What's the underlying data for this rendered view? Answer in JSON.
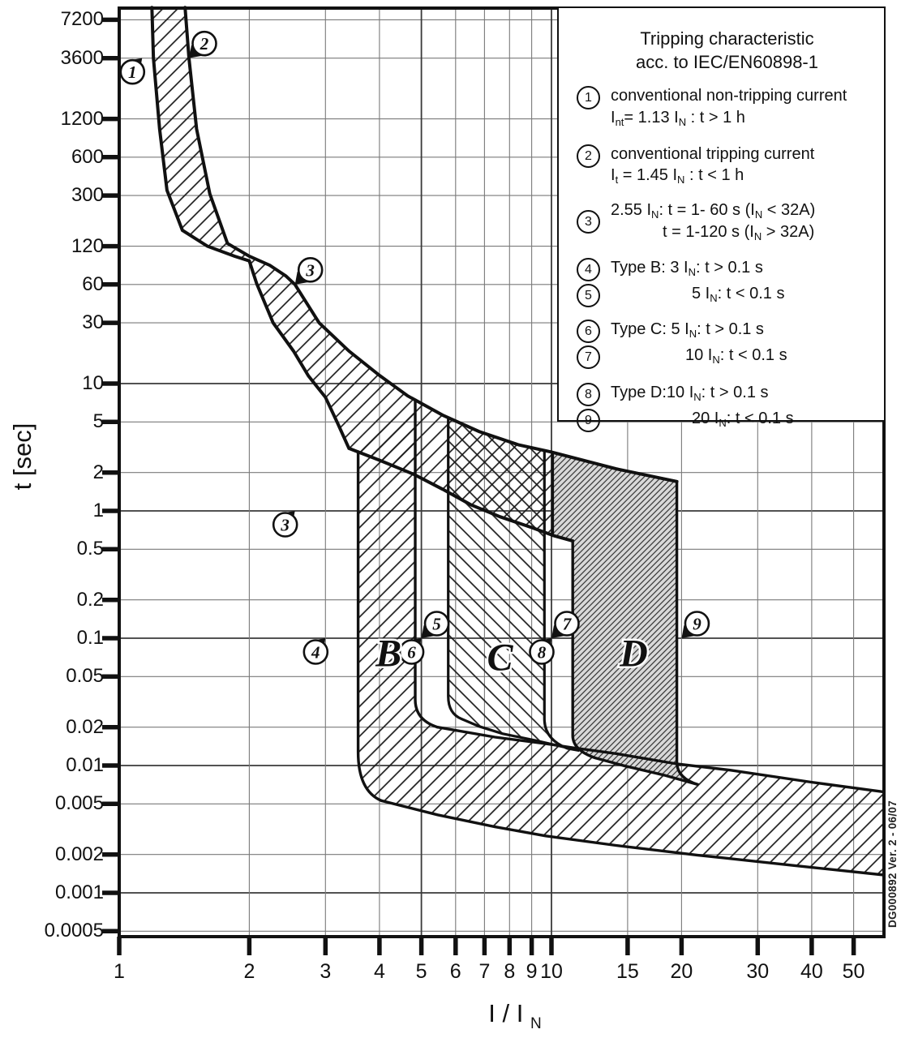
{
  "doc_code": "DG000892 Ver. 2 - 06/07",
  "legend": {
    "title_line1": "Tripping characteristic",
    "title_line2": "acc. to IEC/EN60898-1",
    "items": [
      {
        "num": "1",
        "mt": 14,
        "lines": [
          {
            "t": "conventional non-tripping current"
          },
          {
            "t": "I_{nt}= 1.13 I_{N} : t > 1 h"
          }
        ]
      },
      {
        "num": "2",
        "mt": 18,
        "lines": [
          {
            "t": "conventional tripping current"
          },
          {
            "t": "I_{t} = 1.45 I_{N} : t < 1 h"
          }
        ]
      },
      {
        "num": "3",
        "mt": 16,
        "center": true,
        "lines": [
          {
            "t": "2.55 I_{N}: t = 1- 60 s (I_{N} < 32A)"
          },
          {
            "t": "t = 1-120 s (I_{N} > 32A)",
            "pad": 64
          }
        ]
      },
      {
        "num": "4",
        "mt": 16,
        "lines": [
          {
            "t": "Type B: 3 I_{N}: t > 0.1 s"
          }
        ]
      },
      {
        "num": "5",
        "mt": 2,
        "lines": [
          {
            "t": "5 I_{N}: t < 0.1 s",
            "pad": 100
          }
        ]
      },
      {
        "num": "6",
        "mt": 14,
        "lines": [
          {
            "t": "Type C: 5 I_{N}: t > 0.1 s"
          }
        ]
      },
      {
        "num": "7",
        "mt": 2,
        "lines": [
          {
            "t": "10 I_{N}: t < 0.1 s",
            "pad": 92
          }
        ]
      },
      {
        "num": "8",
        "mt": 16,
        "lines": [
          {
            "t": "Type D:10 I_{N}: t > 0.1 s"
          }
        ]
      },
      {
        "num": "9",
        "mt": 2,
        "lines": [
          {
            "t": "20 I_{N}: t < 0.1 s",
            "pad": 100
          }
        ]
      }
    ]
  },
  "axes": {
    "y_title": "t [sec]",
    "x_title": "I / I",
    "x_title_sub": "N",
    "y_ticks": [
      "7200",
      "3600",
      "1200",
      "600",
      "300",
      "120",
      "60",
      "30",
      "10",
      "5",
      "2",
      "1",
      "0.5",
      "0.2",
      "0.1",
      "0.05",
      "0.02",
      "0.01",
      "0.005",
      "0.002",
      "0.001",
      "0.0005"
    ],
    "x_ticks": [
      1,
      2,
      3,
      4,
      5,
      6,
      7,
      8,
      9,
      10,
      15,
      20,
      30,
      40,
      50
    ]
  },
  "chart_data": {
    "type": "area",
    "title": "Tripping characteristic acc. to IEC/EN60898-1",
    "xlabel": "I / I_N",
    "ylabel": "t [sec]",
    "x_scale": "log",
    "y_scale": "log",
    "xlim": [
      1,
      58.8
    ],
    "ylim": [
      0.00042,
      9200
    ],
    "grid": "on",
    "curves": {
      "thermal_upper_1_45": [
        [
          1.42,
          9000
        ],
        [
          1.45,
          3600
        ],
        [
          1.51,
          1000
        ],
        [
          1.62,
          310
        ],
        [
          1.78,
          126
        ],
        [
          2.0,
          100
        ],
        [
          2.23,
          85
        ],
        [
          2.43,
          70
        ],
        [
          2.55,
          60
        ],
        [
          2.9,
          30
        ],
        [
          3.4,
          18
        ],
        [
          4.0,
          11.6
        ],
        [
          4.65,
          8.0
        ],
        [
          5.6,
          5.65
        ],
        [
          6.8,
          4.2
        ],
        [
          8.4,
          3.3
        ],
        [
          10,
          2.9
        ],
        [
          14.1,
          2.14
        ],
        [
          19.5,
          1.7
        ]
      ],
      "thermal_lower_1_13": [
        [
          1.19,
          9000
        ],
        [
          1.2,
          3600
        ],
        [
          1.24,
          1000
        ],
        [
          1.29,
          330
        ],
        [
          1.4,
          160
        ],
        [
          1.6,
          120
        ],
        [
          1.85,
          100
        ],
        [
          2.0,
          92
        ],
        [
          2.08,
          61
        ],
        [
          2.27,
          30
        ],
        [
          2.53,
          18
        ],
        [
          2.74,
          11.5
        ],
        [
          3.0,
          7.8
        ],
        [
          3.2,
          4.9
        ],
        [
          3.4,
          3.1
        ],
        [
          4.0,
          2.5
        ],
        [
          4.8,
          1.94
        ],
        [
          5.6,
          1.48
        ],
        [
          6.5,
          1.12
        ],
        [
          7.6,
          0.9
        ],
        [
          9.0,
          0.74
        ],
        [
          10.1,
          0.64
        ],
        [
          11.2,
          0.58
        ]
      ]
    },
    "instantaneous_band": {
      "upper": [
        [
          5.45,
          0.02
        ],
        [
          7.4,
          0.0167
        ],
        [
          9.63,
          0.0149
        ],
        [
          11.2,
          0.0138
        ],
        [
          14.1,
          0.0124
        ],
        [
          19.5,
          0.0103
        ],
        [
          25.9,
          0.0092
        ],
        [
          39.9,
          0.0074
        ],
        [
          58.8,
          0.0062
        ]
      ],
      "lower": [
        [
          4.04,
          0.0053
        ],
        [
          5.45,
          0.0041
        ],
        [
          7.4,
          0.0033
        ],
        [
          9.7,
          0.0028
        ],
        [
          14.1,
          0.00236
        ],
        [
          21.7,
          0.00198
        ],
        [
          36.4,
          0.00164
        ],
        [
          58.8,
          0.00138
        ]
      ]
    },
    "regions": [
      {
        "label": "B",
        "nominal_range": [
          3,
          5
        ],
        "drawn_range": [
          3.57,
          4.84
        ],
        "left_top_t": 2.92,
        "left_bend_t": 0.0128,
        "right_top_t": 7.45,
        "right_bend_t": 0.033,
        "hatch": "fwd",
        "label_pos": [
          4.2,
          0.076
        ]
      },
      {
        "label": "C",
        "nominal_range": [
          5,
          10
        ],
        "drawn_range": [
          5.77,
          9.63
        ],
        "left_top_t": 5.32,
        "left_bend_t": 0.035,
        "right_top_t": 2.96,
        "right_bend_t": 0.0233,
        "hatch": "back",
        "label_pos": [
          7.6,
          0.071
        ],
        "bend_outer": [
          [
            10.9,
            0.0136
          ],
          [
            11.6,
            0.0131
          ]
        ],
        "bend_inner": [
          [
            9.2,
            0.0157
          ],
          [
            7.7,
            0.0178
          ],
          [
            6.8,
            0.0203
          ],
          [
            6.2,
            0.0232
          ]
        ]
      },
      {
        "label": "D",
        "nominal_range": [
          10,
          20
        ],
        "drawn_range": [
          11.2,
          19.5
        ],
        "left_top_t": 0.58,
        "left_bend_t": 0.0172,
        "right_top_t": 1.7,
        "right_bend_t": 0.0107,
        "hatch": "dense",
        "label_pos": [
          15.5,
          0.076
        ],
        "step_corner": [
          10.06,
          0.64
        ],
        "bend_outer": [
          [
            21.9,
            0.00705
          ]
        ],
        "bend_inner": [
          [
            18.3,
            0.00838
          ],
          [
            14.7,
            0.00997
          ],
          [
            12.6,
            0.0115
          ]
        ]
      }
    ],
    "markers": [
      {
        "n": "1",
        "I": 1.13,
        "t": 3600,
        "dir": "below"
      },
      {
        "n": "2",
        "I": 1.45,
        "t": 3600,
        "dir": "above"
      },
      {
        "n": "3",
        "I": 2.55,
        "t": 60,
        "dir": "above"
      },
      {
        "n": "3",
        "I": 2.55,
        "t": 1,
        "dir": "below"
      },
      {
        "n": "4",
        "I": 3,
        "t": 0.1,
        "dir": "below"
      },
      {
        "n": "5",
        "I": 5,
        "t": 0.1,
        "dir": "above"
      },
      {
        "n": "6",
        "I": 5,
        "t": 0.1,
        "dir": "below"
      },
      {
        "n": "7",
        "I": 10,
        "t": 0.1,
        "dir": "above"
      },
      {
        "n": "8",
        "I": 10,
        "t": 0.1,
        "dir": "below"
      },
      {
        "n": "9",
        "I": 20,
        "t": 0.1,
        "dir": "above"
      }
    ]
  }
}
